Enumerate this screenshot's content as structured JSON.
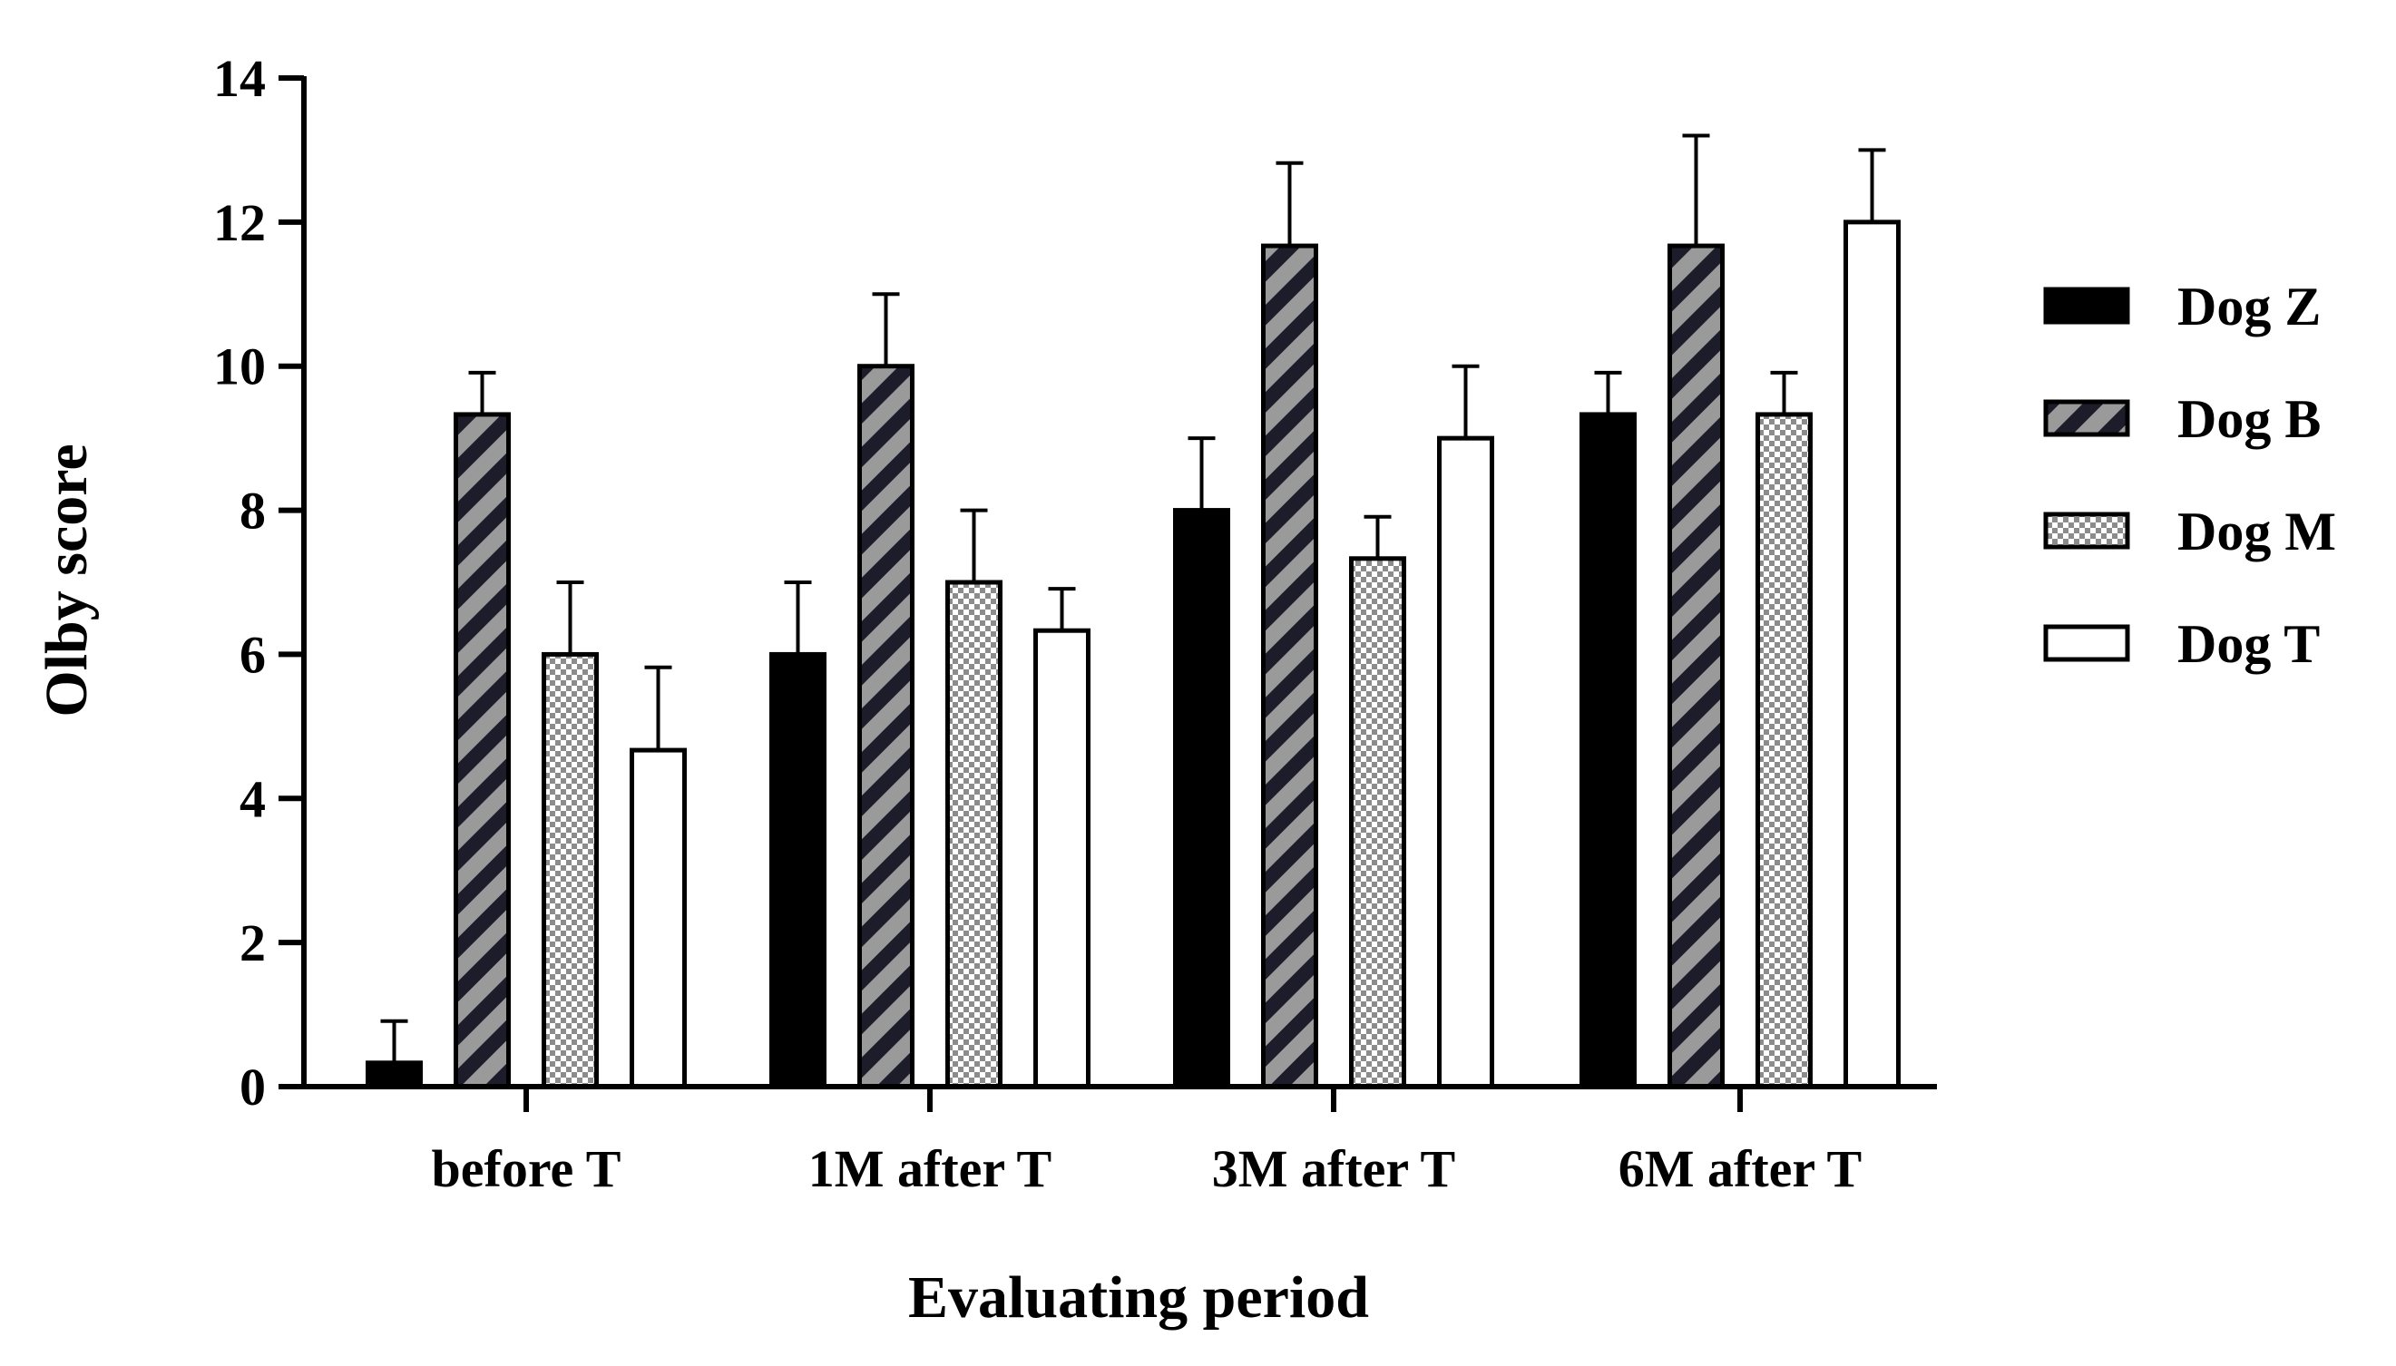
{
  "chart_data": {
    "type": "bar",
    "title": "",
    "xlabel": "Evaluating period",
    "ylabel": "Olby score",
    "ylim": [
      0,
      14
    ],
    "yticks": [
      0,
      2,
      4,
      6,
      8,
      10,
      12,
      14
    ],
    "grid": false,
    "legend_position": "right",
    "categories": [
      "before T",
      "1M after T",
      "3M after T",
      "6M after T"
    ],
    "series": [
      {
        "name": "Dog Z",
        "values": [
          0.33,
          6.0,
          8.0,
          9.33
        ],
        "errors": [
          0.58,
          1.0,
          1.0,
          0.58
        ],
        "pattern": "solid-black"
      },
      {
        "name": "Dog B",
        "values": [
          9.33,
          10.0,
          11.67,
          11.67
        ],
        "errors": [
          0.58,
          1.0,
          1.15,
          1.53
        ],
        "pattern": "diagonal-stripes"
      },
      {
        "name": "Dog M",
        "values": [
          6.0,
          7.0,
          7.33,
          9.33
        ],
        "errors": [
          1.0,
          1.0,
          0.58,
          0.58
        ],
        "pattern": "checker"
      },
      {
        "name": "Dog T",
        "values": [
          4.67,
          6.33,
          9.0,
          12.0
        ],
        "errors": [
          1.15,
          0.58,
          1.0,
          1.0
        ],
        "pattern": "white"
      }
    ]
  }
}
